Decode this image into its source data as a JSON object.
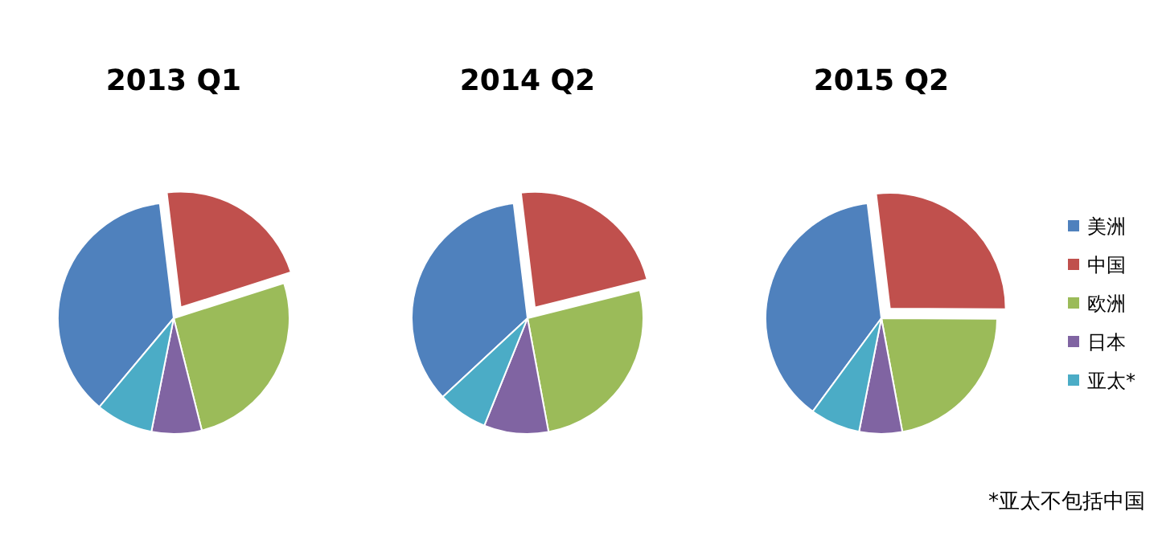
{
  "chart_data": [
    {
      "type": "pie",
      "title": "2013 Q1",
      "categories": [
        null,
        null,
        null,
        null,
        null
      ],
      "values": [
        37,
        22,
        26,
        7,
        8
      ],
      "colors": [
        "#4f81bd",
        "#c0504d",
        "#9bbb59",
        "#8064a2",
        "#4bacc6"
      ]
    },
    {
      "type": "pie",
      "title": "2014 Q2",
      "categories": [
        null,
        null,
        null,
        null,
        null
      ],
      "values": [
        35,
        23,
        26,
        9,
        7
      ],
      "colors": [
        "#4f81bd",
        "#c0504d",
        "#9bbb59",
        "#8064a2",
        "#4bacc6"
      ]
    },
    {
      "type": "pie",
      "title": "2015 Q2",
      "categories": [
        "美洲",
        "中国",
        "欧洲",
        "日本",
        "亚太*"
      ],
      "values": [
        38,
        27,
        22,
        6,
        7
      ],
      "colors": [
        "#4f81bd",
        "#c0504d",
        "#9bbb59",
        "#8064a2",
        "#4bacc6"
      ],
      "legend": "right",
      "annotations": [
        "*亚太不包括中国"
      ]
    }
  ]
}
